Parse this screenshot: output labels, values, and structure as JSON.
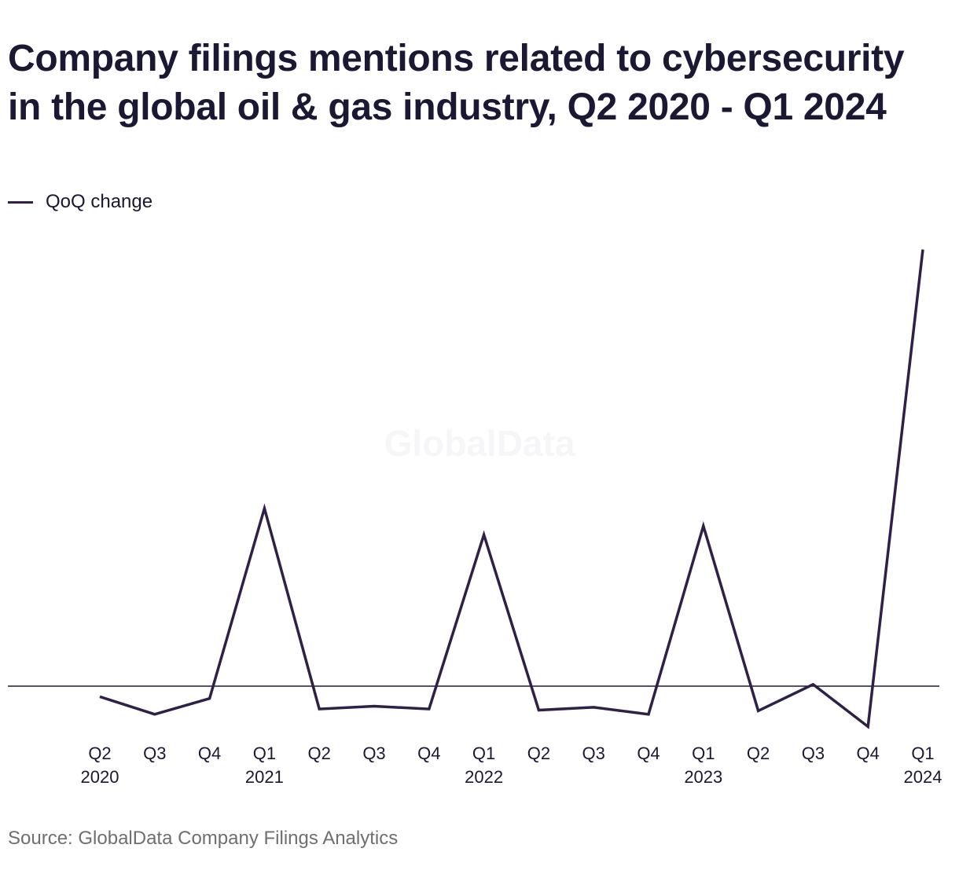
{
  "chart_data": {
    "type": "line",
    "title": "Company filings mentions related to cybersecurity in the global oil & gas industry, Q2 2020 - Q1 2024",
    "xlabel": "",
    "ylabel": "",
    "categories": [
      {
        "quarter": "Q2",
        "year": "2020"
      },
      {
        "quarter": "Q3",
        "year": ""
      },
      {
        "quarter": "Q4",
        "year": ""
      },
      {
        "quarter": "Q1",
        "year": "2021"
      },
      {
        "quarter": "Q2",
        "year": ""
      },
      {
        "quarter": "Q3",
        "year": ""
      },
      {
        "quarter": "Q4",
        "year": ""
      },
      {
        "quarter": "Q1",
        "year": "2022"
      },
      {
        "quarter": "Q2",
        "year": ""
      },
      {
        "quarter": "Q3",
        "year": ""
      },
      {
        "quarter": "Q4",
        "year": ""
      },
      {
        "quarter": "Q1",
        "year": "2023"
      },
      {
        "quarter": "Q2",
        "year": ""
      },
      {
        "quarter": "Q3",
        "year": ""
      },
      {
        "quarter": "Q4",
        "year": ""
      },
      {
        "quarter": "Q1",
        "year": "2024"
      }
    ],
    "series": [
      {
        "name": "QoQ change",
        "color": "#2f2048",
        "values": [
          -0.03,
          -0.08,
          -0.035,
          0.505,
          -0.065,
          -0.057,
          -0.065,
          0.43,
          -0.068,
          -0.06,
          -0.08,
          0.455,
          -0.07,
          0.005,
          -0.115,
          1.24
        ]
      }
    ],
    "ylim": [
      -0.3,
      1.5
    ],
    "zero_line": true,
    "grid": false,
    "legend": "top-left",
    "watermark": "GlobalData"
  },
  "source": "Source: GlobalData Company Filings Analytics"
}
